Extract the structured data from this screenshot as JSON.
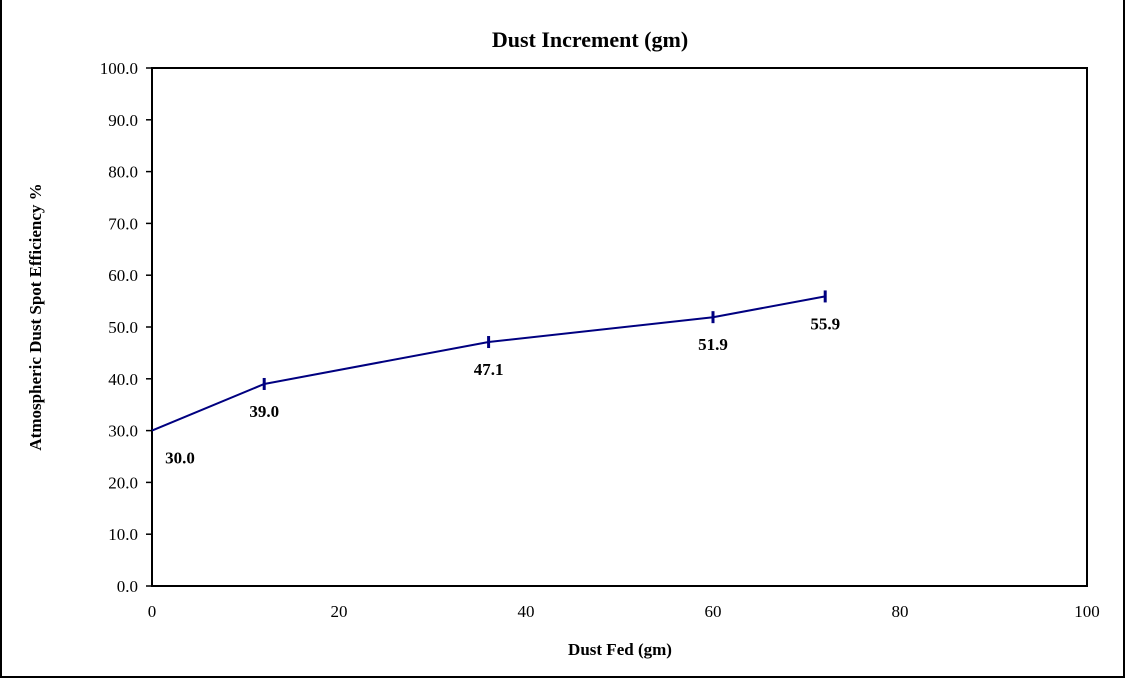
{
  "chart_data": {
    "type": "line",
    "title": "Dust Increment (gm)",
    "xlabel": "Dust Fed (gm)",
    "ylabel": "Atmospheric Dust Spot Efficiency %",
    "xlim": [
      0,
      100
    ],
    "ylim": [
      0,
      100
    ],
    "x_ticks": [
      "0",
      "20",
      "40",
      "60",
      "80",
      "100"
    ],
    "y_ticks": [
      "0.0",
      "10.0",
      "20.0",
      "30.0",
      "40.0",
      "50.0",
      "60.0",
      "70.0",
      "80.0",
      "90.0",
      "100.0"
    ],
    "grid": false,
    "legend": "none",
    "line_color": "#000080",
    "series": [
      {
        "x": [
          0,
          12,
          36,
          60,
          72
        ],
        "y": [
          30.0,
          39.0,
          47.1,
          51.9,
          55.9
        ],
        "labels": [
          "30.0",
          "39.0",
          "47.1",
          "51.9",
          "55.9"
        ]
      }
    ]
  }
}
